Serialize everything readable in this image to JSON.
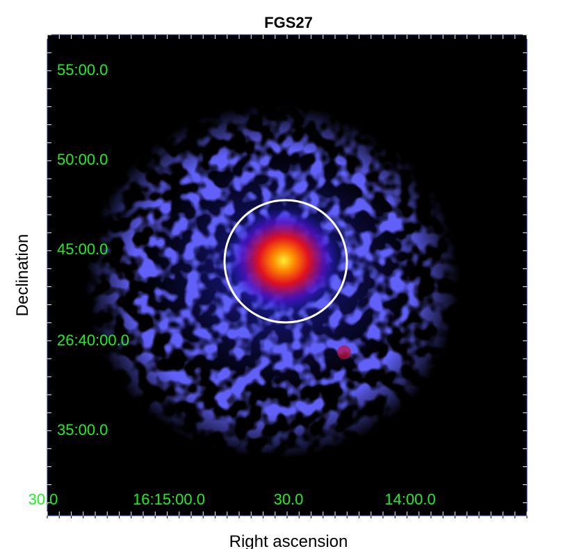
{
  "title": "FGS27",
  "x_axis": {
    "label": "Right ascension",
    "ticks": [
      "30.0",
      "16:15:00.0",
      "30.0",
      "14:00.0"
    ]
  },
  "y_axis": {
    "label": "Declination",
    "ticks": [
      "55:00.0",
      "50:00.0",
      "45:00.0",
      "26:40:00.0",
      "35:00.0"
    ]
  }
}
